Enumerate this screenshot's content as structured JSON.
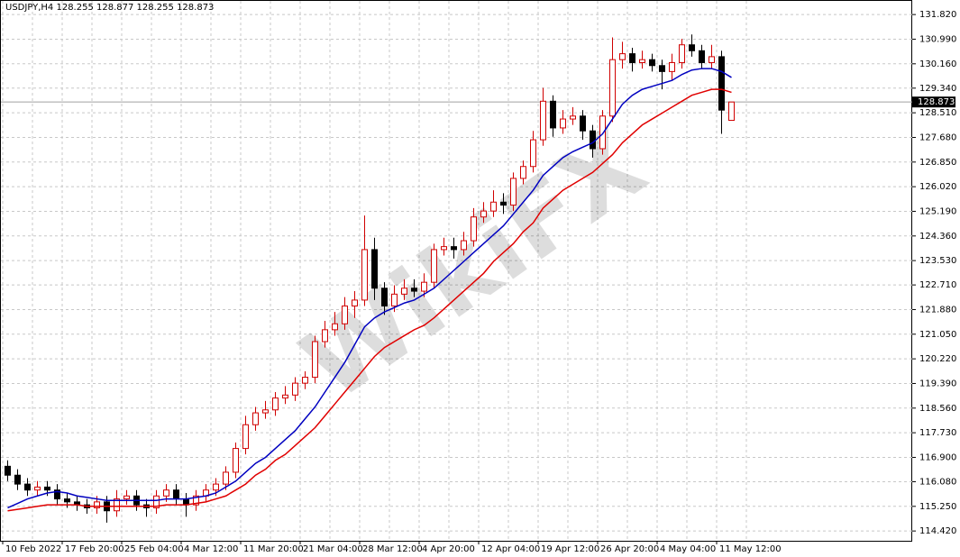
{
  "chart_data": {
    "type": "candlestick",
    "title": "USDJPY,H4  128.255 128.877 128.255 128.873",
    "watermark": "WikiFX",
    "up_color": "#d00000",
    "down_color": "#000000",
    "categories": [
      "10 Feb 2022",
      null,
      null,
      null,
      null,
      null,
      "17 Feb 20:00",
      null,
      null,
      null,
      null,
      null,
      "25 Feb 04:00",
      null,
      null,
      null,
      null,
      null,
      "4 Mar 12:00",
      null,
      null,
      null,
      null,
      null,
      "11 Mar 20:00",
      null,
      null,
      null,
      null,
      null,
      "21 Mar 04:00",
      null,
      null,
      null,
      null,
      null,
      "28 Mar 12:00",
      null,
      null,
      null,
      null,
      null,
      "4 Apr 20:00",
      null,
      null,
      null,
      null,
      null,
      "12 Apr 04:00",
      null,
      null,
      null,
      null,
      null,
      "19 Apr 12:00",
      null,
      null,
      null,
      null,
      null,
      "26 Apr 20:00",
      null,
      null,
      null,
      null,
      null,
      "4 May 04:00",
      null,
      null,
      null,
      null,
      null,
      "11 May 12:00",
      null
    ],
    "open": [
      116.6,
      116.3,
      116.0,
      115.8,
      115.9,
      115.8,
      115.5,
      115.4,
      115.3,
      115.2,
      115.4,
      115.1,
      115.5,
      115.6,
      115.3,
      115.2,
      115.6,
      115.8,
      115.5,
      115.3,
      115.6,
      115.8,
      116.0,
      116.4,
      117.2,
      118.0,
      118.4,
      118.5,
      118.9,
      119.0,
      119.4,
      119.6,
      120.8,
      121.2,
      121.4,
      122.0,
      122.2,
      123.9,
      122.6,
      122.0,
      122.4,
      122.6,
      122.5,
      122.8,
      123.9,
      124.0,
      123.9,
      124.2,
      125.0,
      125.2,
      125.5,
      125.4,
      126.3,
      126.7,
      127.6,
      128.9,
      128.0,
      128.3,
      128.4,
      127.9,
      127.3,
      128.4,
      130.3,
      130.5,
      130.2,
      130.3,
      130.1,
      129.9,
      130.2,
      130.8,
      130.6,
      130.2,
      130.4,
      128.255
    ],
    "high": [
      116.8,
      116.5,
      116.2,
      116.1,
      116.1,
      116.0,
      115.7,
      115.6,
      115.5,
      115.6,
      115.6,
      115.8,
      115.8,
      115.8,
      115.5,
      115.8,
      116.0,
      116.0,
      115.7,
      115.8,
      116.0,
      116.2,
      116.6,
      117.4,
      118.3,
      118.6,
      118.8,
      119.1,
      119.3,
      119.6,
      119.8,
      121.0,
      121.5,
      121.8,
      122.3,
      122.5,
      125.05,
      124.3,
      122.8,
      122.7,
      122.9,
      122.9,
      123.1,
      124.1,
      124.3,
      124.3,
      124.5,
      125.3,
      125.5,
      125.9,
      125.8,
      126.5,
      126.9,
      127.9,
      129.35,
      129.1,
      128.6,
      128.7,
      128.6,
      128.1,
      128.6,
      131.05,
      130.9,
      130.7,
      130.6,
      130.5,
      130.3,
      130.5,
      131.0,
      131.15,
      130.8,
      130.8,
      130.6,
      128.877
    ],
    "low": [
      116.1,
      115.8,
      115.6,
      115.6,
      115.6,
      115.3,
      115.2,
      115.1,
      115.0,
      115.0,
      114.7,
      114.9,
      115.3,
      115.1,
      114.9,
      115.0,
      115.4,
      115.3,
      114.9,
      115.1,
      115.4,
      115.6,
      115.8,
      116.2,
      117.0,
      117.8,
      118.2,
      118.3,
      118.7,
      118.8,
      119.2,
      119.4,
      120.6,
      121.0,
      121.2,
      121.6,
      122.0,
      122.2,
      121.7,
      121.8,
      122.2,
      122.3,
      122.3,
      122.6,
      123.7,
      123.6,
      123.7,
      124.0,
      124.8,
      125.0,
      125.1,
      125.2,
      126.1,
      126.5,
      127.4,
      127.7,
      127.8,
      128.1,
      127.6,
      127.0,
      127.1,
      128.2,
      130.0,
      129.9,
      130.0,
      129.9,
      129.3,
      129.6,
      130.0,
      130.4,
      130.0,
      130.0,
      127.8,
      128.255
    ],
    "close": [
      116.3,
      116.0,
      115.8,
      115.9,
      115.8,
      115.5,
      115.4,
      115.3,
      115.2,
      115.4,
      115.1,
      115.5,
      115.6,
      115.3,
      115.2,
      115.6,
      115.8,
      115.5,
      115.3,
      115.6,
      115.8,
      116.0,
      116.4,
      117.2,
      118.0,
      118.4,
      118.5,
      118.9,
      119.0,
      119.4,
      119.6,
      120.8,
      121.2,
      121.4,
      122.0,
      122.2,
      123.9,
      122.6,
      122.0,
      122.4,
      122.6,
      122.5,
      122.8,
      123.9,
      124.0,
      123.9,
      124.2,
      125.0,
      125.2,
      125.5,
      125.4,
      126.3,
      126.7,
      127.6,
      128.9,
      128.0,
      128.3,
      128.4,
      127.9,
      127.3,
      128.4,
      130.3,
      130.5,
      130.2,
      130.3,
      130.1,
      129.9,
      130.2,
      130.8,
      130.6,
      130.2,
      130.4,
      128.6,
      128.873
    ],
    "moving_averages": [
      {
        "color": "#0000c0",
        "values": [
          115.2,
          115.35,
          115.5,
          115.6,
          115.7,
          115.75,
          115.7,
          115.6,
          115.55,
          115.5,
          115.45,
          115.45,
          115.45,
          115.45,
          115.45,
          115.45,
          115.5,
          115.5,
          115.5,
          115.55,
          115.6,
          115.7,
          115.9,
          116.1,
          116.4,
          116.7,
          116.9,
          117.2,
          117.5,
          117.8,
          118.2,
          118.6,
          119.1,
          119.6,
          120.1,
          120.7,
          121.3,
          121.6,
          121.8,
          121.95,
          122.1,
          122.2,
          122.4,
          122.6,
          122.9,
          123.2,
          123.5,
          123.8,
          124.1,
          124.4,
          124.7,
          125.1,
          125.5,
          125.9,
          126.4,
          126.7,
          127.0,
          127.2,
          127.35,
          127.5,
          127.8,
          128.3,
          128.8,
          129.1,
          129.3,
          129.4,
          129.5,
          129.6,
          129.8,
          129.95,
          130.0,
          130.0,
          129.9,
          129.7
        ]
      },
      {
        "color": "#e00000",
        "values": [
          115.1,
          115.15,
          115.2,
          115.25,
          115.3,
          115.3,
          115.3,
          115.3,
          115.25,
          115.25,
          115.25,
          115.25,
          115.25,
          115.25,
          115.25,
          115.25,
          115.3,
          115.3,
          115.3,
          115.35,
          115.4,
          115.5,
          115.6,
          115.8,
          116.0,
          116.3,
          116.5,
          116.8,
          117.0,
          117.3,
          117.6,
          117.9,
          118.3,
          118.7,
          119.1,
          119.5,
          119.9,
          120.3,
          120.6,
          120.8,
          121.0,
          121.2,
          121.35,
          121.6,
          121.9,
          122.2,
          122.5,
          122.8,
          123.1,
          123.5,
          123.8,
          124.1,
          124.5,
          124.8,
          125.3,
          125.6,
          125.9,
          126.1,
          126.3,
          126.5,
          126.8,
          127.1,
          127.5,
          127.8,
          128.1,
          128.3,
          128.5,
          128.7,
          128.9,
          129.1,
          129.2,
          129.3,
          129.3,
          129.2
        ]
      }
    ],
    "last_price": 128.873,
    "ylim": [
      114.09,
      132.31
    ],
    "yticks": [
      {
        "value": 131.82,
        "label": "131.820"
      },
      {
        "value": 130.99,
        "label": "130.990"
      },
      {
        "value": 130.16,
        "label": "130.160"
      },
      {
        "value": 129.34,
        "label": "129.340"
      },
      {
        "value": 128.51,
        "label": "128.510"
      },
      {
        "value": 127.68,
        "label": "127.680"
      },
      {
        "value": 126.85,
        "label": "126.850"
      },
      {
        "value": 126.02,
        "label": "126.020"
      },
      {
        "value": 125.19,
        "label": "125.190"
      },
      {
        "value": 124.36,
        "label": "124.360"
      },
      {
        "value": 123.53,
        "label": "123.530"
      },
      {
        "value": 122.71,
        "label": "122.710"
      },
      {
        "value": 121.88,
        "label": "121.880"
      },
      {
        "value": 121.05,
        "label": "121.050"
      },
      {
        "value": 120.22,
        "label": "120.220"
      },
      {
        "value": 119.39,
        "label": "119.390"
      },
      {
        "value": 118.56,
        "label": "118.560"
      },
      {
        "value": 117.73,
        "label": "117.730"
      },
      {
        "value": 116.9,
        "label": "116.900"
      },
      {
        "value": 116.08,
        "label": "116.080"
      },
      {
        "value": 115.25,
        "label": "115.250"
      },
      {
        "value": 114.42,
        "label": "114.420"
      }
    ],
    "grid": true
  }
}
